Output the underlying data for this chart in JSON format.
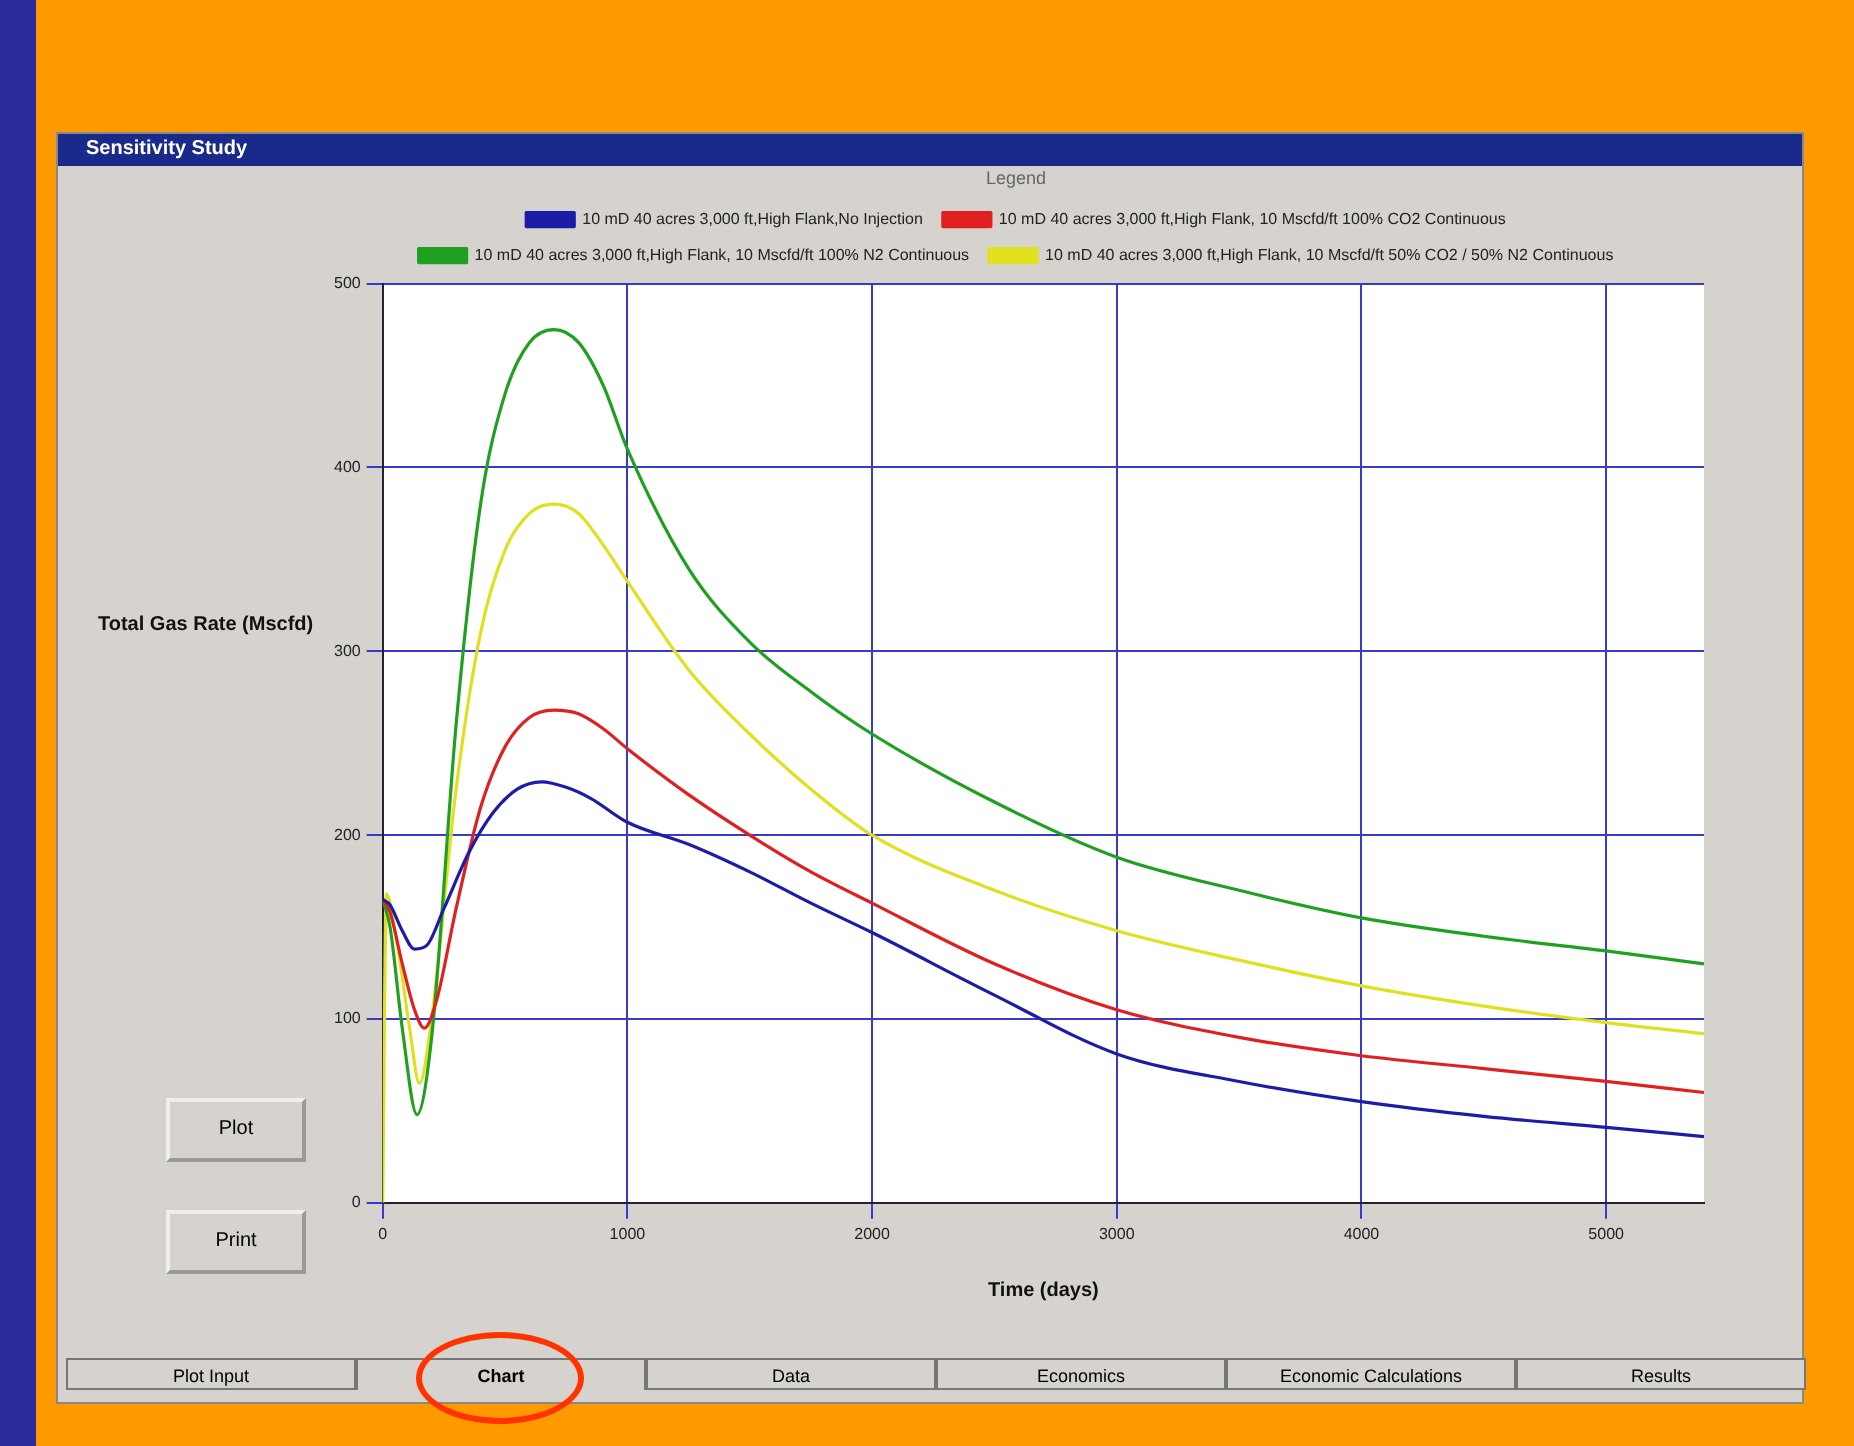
{
  "chart_data": {
    "type": "line",
    "title": "Sensitivity Study",
    "xlabel": "Time (days)",
    "ylabel": "Total Gas Rate (Mscfd)",
    "legend_title": "Legend",
    "xlim": [
      0,
      5400
    ],
    "xticks": [
      0,
      1000,
      2000,
      3000,
      4000,
      5000
    ],
    "ylim": [
      0,
      500
    ],
    "yticks": [
      0,
      100,
      200,
      300,
      400,
      500
    ],
    "grid": true,
    "legend": "top",
    "marker": "none",
    "line_style": "solid",
    "annotations": [
      "Plot",
      "Print",
      "Plot Input",
      "Chart",
      "Data",
      "Economics",
      "Economic Calculations",
      "Results"
    ],
    "series": [
      {
        "name": "10 mD 40 acres 3,000 ft,High Flank,No Injection",
        "color": "#1c1ca8",
        "x": [
          0,
          30,
          80,
          130,
          180,
          250,
          350,
          450,
          550,
          650,
          750,
          850,
          1000,
          1250,
          1500,
          1750,
          2000,
          2500,
          3000,
          3500,
          4000,
          4500,
          5000,
          5400
        ],
        "values": [
          165,
          162,
          148,
          138,
          140,
          160,
          190,
          212,
          225,
          229,
          226,
          220,
          207,
          195,
          180,
          163,
          147,
          113,
          81,
          66,
          55,
          47,
          41,
          36
        ]
      },
      {
        "name": "10 mD 40 acres 3,000 ft,High Flank, 10 Mscfd/ft 100% CO2 Continuous",
        "color": "#e02020",
        "x": [
          0,
          30,
          80,
          130,
          170,
          220,
          300,
          400,
          500,
          600,
          700,
          800,
          900,
          1000,
          1250,
          1500,
          1750,
          2000,
          2500,
          3000,
          3500,
          4000,
          4500,
          5000,
          5400
        ],
        "values": [
          165,
          158,
          130,
          105,
          95,
          110,
          160,
          215,
          248,
          264,
          268,
          266,
          258,
          247,
          222,
          200,
          180,
          163,
          130,
          105,
          90,
          80,
          73,
          66,
          60
        ]
      },
      {
        "name": "10 mD 40 acres 3,000 ft,High Flank, 10 Mscfd/ft 100% N2 Continuous",
        "color": "#20a020",
        "x": [
          0,
          30,
          80,
          140,
          200,
          300,
          400,
          500,
          600,
          700,
          800,
          900,
          1000,
          1250,
          1500,
          1750,
          2000,
          2500,
          3000,
          3500,
          4000,
          4500,
          5000,
          5400
        ],
        "values": [
          165,
          150,
          95,
          48,
          90,
          260,
          380,
          440,
          468,
          475,
          468,
          445,
          410,
          345,
          305,
          278,
          255,
          218,
          188,
          170,
          155,
          145,
          137,
          130
        ]
      },
      {
        "name": "10 mD 40 acres 3,000 ft,High Flank, 10 Mscfd/ft 50% CO2 / 50% N2 Continuous",
        "color": "#e0e020",
        "x": [
          0,
          15,
          60,
          110,
          150,
          200,
          300,
          400,
          500,
          600,
          700,
          800,
          900,
          1000,
          1250,
          1500,
          1750,
          2000,
          2500,
          3000,
          3500,
          4000,
          4500,
          5000,
          5400
        ],
        "values": [
          0,
          168,
          140,
          95,
          65,
          100,
          225,
          310,
          355,
          375,
          380,
          375,
          358,
          338,
          290,
          255,
          225,
          200,
          170,
          148,
          132,
          118,
          107,
          98,
          92
        ]
      }
    ]
  }
}
